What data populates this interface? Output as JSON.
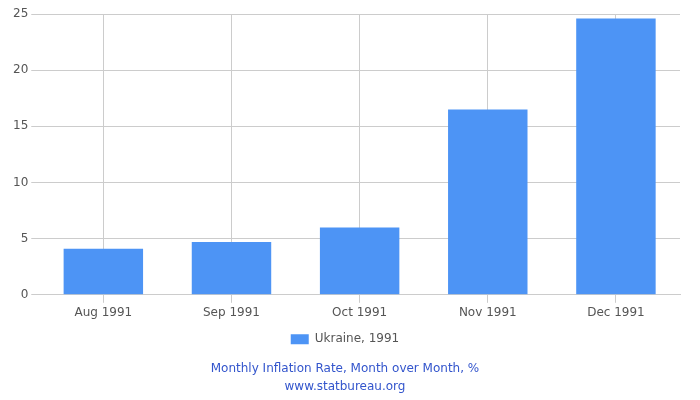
{
  "chart_data": {
    "type": "bar",
    "title": "Monthly Inflation Rate, Month over Month, %",
    "subtitle": "www.statbureau.org",
    "categories": [
      "Aug 1991",
      "Sep 1991",
      "Oct 1991",
      "Nov 1991",
      "Dec 1991"
    ],
    "series": [
      {
        "name": "Ukraine, 1991",
        "color": "#4d94f5",
        "values": [
          4.1,
          4.7,
          6.0,
          16.5,
          24.6
        ]
      }
    ],
    "ylim": [
      0,
      25
    ],
    "yticks": [
      0,
      5,
      10,
      15,
      20,
      25
    ],
    "grid": true,
    "legend": "bottom"
  }
}
